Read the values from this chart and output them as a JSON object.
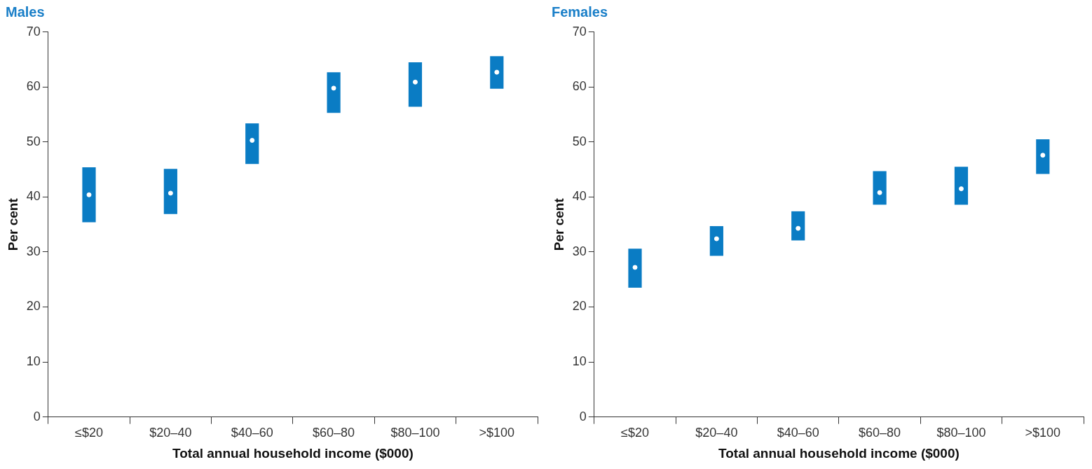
{
  "chart_data": [
    {
      "type": "bar",
      "title": "Males",
      "xlabel": "Total annual household income ($000)",
      "ylabel": "Per cent",
      "categories": [
        "≤$20",
        "$20–40",
        "$40–60",
        "$60–80",
        "$80–100",
        ">$100"
      ],
      "ylim": [
        0,
        70
      ],
      "yticks": [
        0,
        10,
        20,
        30,
        40,
        50,
        60,
        70
      ],
      "grid": false,
      "legend": false,
      "series": [
        {
          "type": "bar",
          "color": "#0a7cc4",
          "base": [
            35.4,
            36.9,
            46,
            55.3,
            56.4,
            59.7
          ],
          "values": [
            10,
            8.2,
            7.4,
            7.4,
            8.1,
            5.9
          ]
        },
        {
          "type": "scatter",
          "color": "#ffffff",
          "marker": "circle",
          "x": [
            "≤$20",
            "$20–40",
            "$40–60",
            "$60–80",
            "$80–100",
            ">$100"
          ],
          "values": [
            40.4,
            40.7,
            50.3,
            59.8,
            60.9,
            62.7
          ]
        }
      ]
    },
    {
      "type": "bar",
      "title": "Females",
      "xlabel": "Total annual household income ($000)",
      "ylabel": "Per cent",
      "categories": [
        "≤$20",
        "$20–40",
        "$40–60",
        "$60–80",
        "$80–100",
        ">$100"
      ],
      "ylim": [
        0,
        70
      ],
      "yticks": [
        0,
        10,
        20,
        30,
        40,
        50,
        60,
        70
      ],
      "grid": false,
      "legend": false,
      "series": [
        {
          "type": "bar",
          "color": "#0a7cc4",
          "base": [
            23.5,
            29.3,
            32.1,
            38.6,
            38.6,
            44.2
          ],
          "values": [
            7.1,
            5.4,
            5.3,
            6.1,
            6.9,
            6.3
          ]
        },
        {
          "type": "scatter",
          "color": "#ffffff",
          "marker": "circle",
          "x": [
            "≤$20",
            "$20–40",
            "$40–60",
            "$60–80",
            "$80–100",
            ">$100"
          ],
          "values": [
            27.2,
            32.4,
            34.3,
            40.8,
            41.5,
            47.6
          ]
        }
      ]
    }
  ]
}
